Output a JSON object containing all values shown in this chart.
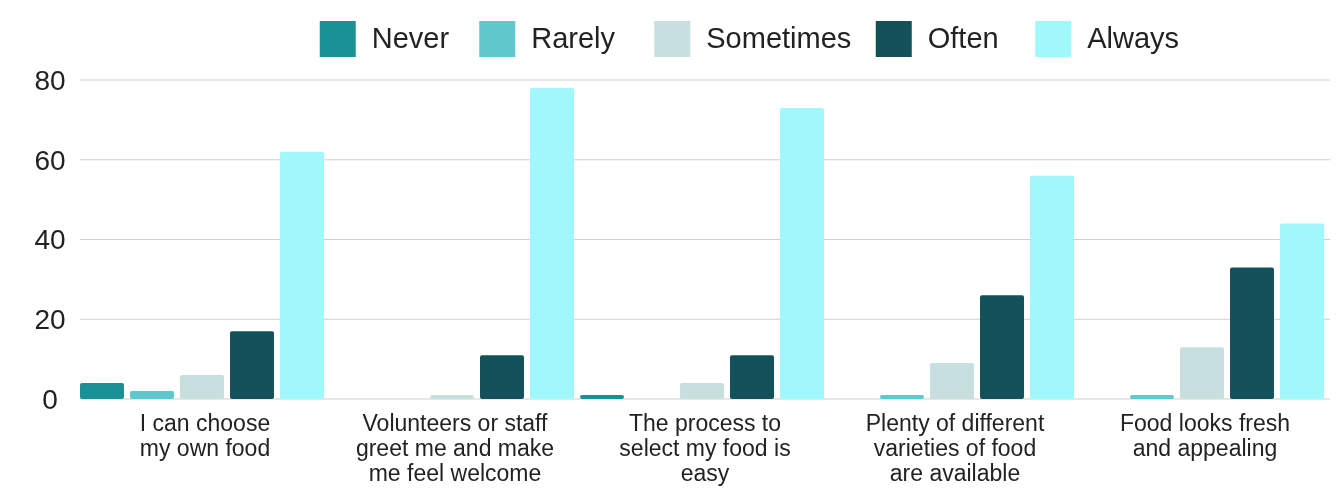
{
  "chart_data": {
    "type": "bar",
    "categories": [
      "I can choose\nmy own food",
      "Volunteers or staff\ngreet me and make\nme feel welcome",
      "The process to\nselect my food is\neasy",
      "Plenty of different\nvarieties of food\nare available",
      "Food looks fresh\nand appealing"
    ],
    "series": [
      {
        "name": "Never",
        "color": "#1a9196",
        "values": [
          4,
          0,
          1,
          0,
          0
        ]
      },
      {
        "name": "Rarely",
        "color": "#5ec8cc",
        "values": [
          2,
          0,
          0,
          1,
          1
        ]
      },
      {
        "name": "Sometimes",
        "color": "#c8dfe0",
        "values": [
          6,
          1,
          4,
          9,
          13
        ]
      },
      {
        "name": "Often",
        "color": "#13525a",
        "values": [
          17,
          11,
          11,
          26,
          33
        ]
      },
      {
        "name": "Always",
        "color": "#a0f8fd",
        "values": [
          62,
          78,
          73,
          56,
          44
        ]
      }
    ],
    "ylim": [
      0,
      80
    ],
    "yticks": [
      0,
      20,
      40,
      60,
      80
    ],
    "grid": "y",
    "legend": "top"
  }
}
